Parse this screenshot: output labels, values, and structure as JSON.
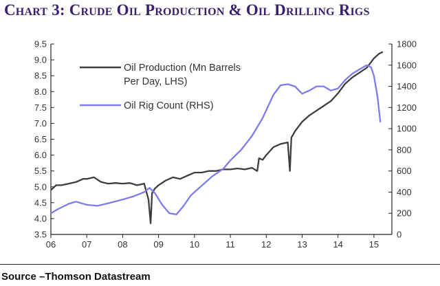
{
  "title": "Chart 3: Crude Oil Production & Oil Drilling Rigs",
  "source": "Source –Thomson Datastream",
  "chart_data": {
    "type": "line",
    "title": "Chart 3: Crude Oil Production & Oil Drilling Rigs",
    "x_ticks": [
      "06",
      "07",
      "08",
      "09",
      "10",
      "11",
      "12",
      "13",
      "14",
      "15"
    ],
    "x_range": [
      2006,
      2015.5
    ],
    "y_left": {
      "range": [
        3.5,
        9.5
      ],
      "ticks": [
        "3.5",
        "4.0",
        "4.5",
        "5.0",
        "5.5",
        "6.0",
        "6.5",
        "7.0",
        "7.5",
        "8.0",
        "8.5",
        "9.0",
        "9.5"
      ]
    },
    "y_right": {
      "range": [
        0,
        1800
      ],
      "ticks": [
        "0",
        "200",
        "400",
        "600",
        "800",
        "1000",
        "1200",
        "1400",
        "1600",
        "1800"
      ]
    },
    "grid": false,
    "legend_position": "top-left",
    "series": [
      {
        "name": "Oil Production (Mn Barrels Per Day, LHS)",
        "legend_lines": [
          "Oil Production (Mn Barrels",
          "Per Day, LHS)"
        ],
        "axis": "left",
        "color": "#3d3d3d",
        "points": [
          [
            2006.0,
            4.9
          ],
          [
            2006.15,
            5.05
          ],
          [
            2006.3,
            5.05
          ],
          [
            2006.5,
            5.1
          ],
          [
            2006.7,
            5.15
          ],
          [
            2006.9,
            5.25
          ],
          [
            2007.0,
            5.25
          ],
          [
            2007.2,
            5.3
          ],
          [
            2007.4,
            5.15
          ],
          [
            2007.6,
            5.1
          ],
          [
            2007.8,
            5.12
          ],
          [
            2008.0,
            5.1
          ],
          [
            2008.2,
            5.12
          ],
          [
            2008.4,
            5.05
          ],
          [
            2008.6,
            5.1
          ],
          [
            2008.72,
            4.6
          ],
          [
            2008.78,
            3.85
          ],
          [
            2008.82,
            4.8
          ],
          [
            2008.9,
            4.95
          ],
          [
            2009.0,
            5.05
          ],
          [
            2009.2,
            5.2
          ],
          [
            2009.4,
            5.3
          ],
          [
            2009.6,
            5.25
          ],
          [
            2009.8,
            5.35
          ],
          [
            2010.0,
            5.45
          ],
          [
            2010.2,
            5.45
          ],
          [
            2010.4,
            5.5
          ],
          [
            2010.6,
            5.5
          ],
          [
            2010.8,
            5.55
          ],
          [
            2011.0,
            5.55
          ],
          [
            2011.2,
            5.58
          ],
          [
            2011.4,
            5.55
          ],
          [
            2011.6,
            5.6
          ],
          [
            2011.75,
            5.5
          ],
          [
            2011.8,
            5.9
          ],
          [
            2011.9,
            5.85
          ],
          [
            2012.0,
            6.0
          ],
          [
            2012.2,
            6.25
          ],
          [
            2012.4,
            6.35
          ],
          [
            2012.6,
            6.4
          ],
          [
            2012.66,
            5.5
          ],
          [
            2012.7,
            6.55
          ],
          [
            2012.8,
            6.75
          ],
          [
            2013.0,
            7.05
          ],
          [
            2013.2,
            7.25
          ],
          [
            2013.4,
            7.4
          ],
          [
            2013.6,
            7.55
          ],
          [
            2013.8,
            7.7
          ],
          [
            2014.0,
            7.95
          ],
          [
            2014.2,
            8.25
          ],
          [
            2014.4,
            8.45
          ],
          [
            2014.6,
            8.6
          ],
          [
            2014.8,
            8.75
          ],
          [
            2015.0,
            9.05
          ],
          [
            2015.15,
            9.2
          ],
          [
            2015.25,
            9.25
          ]
        ]
      },
      {
        "name": "Oil Rig Count (RHS)",
        "legend_lines": [
          "Oil Rig Count (RHS)"
        ],
        "axis": "right",
        "color": "#7b7bf0",
        "points": [
          [
            2006.0,
            200
          ],
          [
            2006.2,
            240
          ],
          [
            2006.5,
            290
          ],
          [
            2006.7,
            310
          ],
          [
            2007.0,
            280
          ],
          [
            2007.3,
            270
          ],
          [
            2007.6,
            295
          ],
          [
            2008.0,
            330
          ],
          [
            2008.3,
            360
          ],
          [
            2008.6,
            400
          ],
          [
            2008.75,
            440
          ],
          [
            2008.9,
            390
          ],
          [
            2009.1,
            280
          ],
          [
            2009.3,
            200
          ],
          [
            2009.5,
            190
          ],
          [
            2009.7,
            270
          ],
          [
            2009.9,
            370
          ],
          [
            2010.2,
            460
          ],
          [
            2010.5,
            550
          ],
          [
            2010.8,
            620
          ],
          [
            2011.0,
            700
          ],
          [
            2011.3,
            800
          ],
          [
            2011.6,
            930
          ],
          [
            2011.9,
            1100
          ],
          [
            2012.2,
            1320
          ],
          [
            2012.4,
            1410
          ],
          [
            2012.6,
            1420
          ],
          [
            2012.8,
            1400
          ],
          [
            2013.0,
            1330
          ],
          [
            2013.2,
            1360
          ],
          [
            2013.4,
            1400
          ],
          [
            2013.6,
            1400
          ],
          [
            2013.8,
            1360
          ],
          [
            2014.0,
            1380
          ],
          [
            2014.2,
            1460
          ],
          [
            2014.4,
            1520
          ],
          [
            2014.6,
            1560
          ],
          [
            2014.8,
            1600
          ],
          [
            2014.92,
            1580
          ],
          [
            2015.0,
            1500
          ],
          [
            2015.1,
            1300
          ],
          [
            2015.18,
            1060
          ]
        ]
      }
    ]
  }
}
